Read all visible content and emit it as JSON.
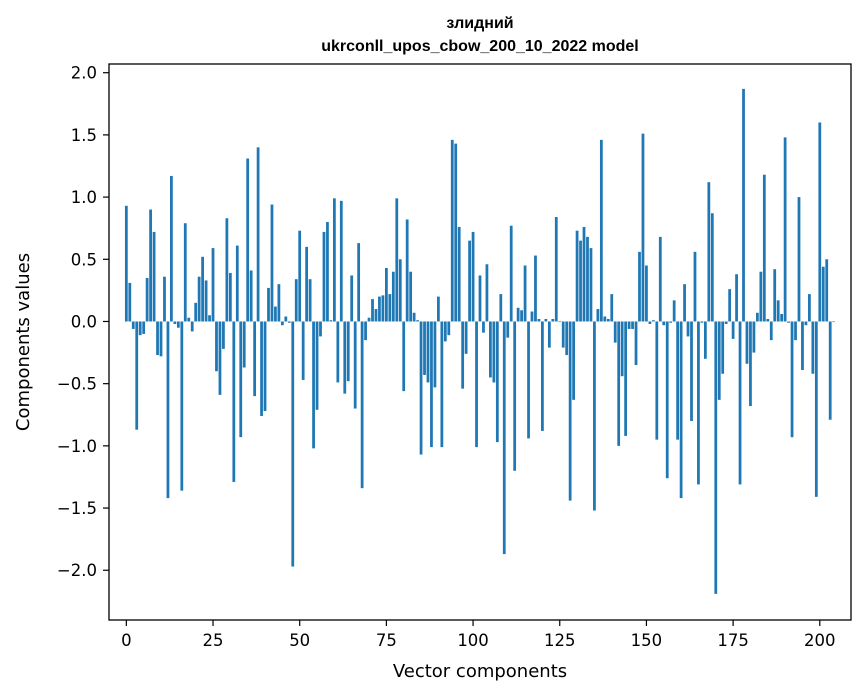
{
  "chart_data": {
    "type": "bar",
    "title_line1": "злидний",
    "title_line2": "ukrconll_upos_cbow_200_10_2022 model",
    "xlabel": "Vector components",
    "ylabel": "Components values",
    "xlim": [
      -5,
      209
    ],
    "ylim": [
      -2.4,
      2.07
    ],
    "xticks": [
      0,
      25,
      50,
      75,
      100,
      125,
      150,
      175,
      200
    ],
    "xtick_labels": [
      "0",
      "25",
      "50",
      "75",
      "100",
      "125",
      "150",
      "175",
      "200"
    ],
    "yticks": [
      2.0,
      1.5,
      1.0,
      0.5,
      0.0,
      -0.5,
      -1.0,
      -1.5,
      -2.0
    ],
    "ytick_labels": [
      "2.0",
      "1.5",
      "1.0",
      "0.5",
      "0.0",
      "−0.5",
      "−1.0",
      "−1.5",
      "−2.0"
    ],
    "bar_color": "#1f77b4",
    "values": [
      0.93,
      0.31,
      -0.06,
      -0.87,
      -0.11,
      -0.1,
      0.35,
      0.9,
      0.72,
      -0.27,
      -0.28,
      0.36,
      -1.42,
      1.17,
      -0.02,
      -0.05,
      -1.36,
      0.79,
      0.03,
      -0.08,
      0.15,
      0.36,
      0.52,
      0.33,
      0.05,
      0.59,
      -0.4,
      -0.59,
      -0.22,
      0.83,
      0.39,
      -1.29,
      0.61,
      -0.93,
      -0.37,
      1.31,
      0.41,
      -0.6,
      1.4,
      -0.76,
      -0.72,
      0.27,
      0.94,
      0.12,
      0.3,
      -0.03,
      0.04,
      -0.01,
      -1.97,
      0.34,
      0.73,
      -0.47,
      0.6,
      0.34,
      -1.02,
      -0.71,
      -0.12,
      0.72,
      0.8,
      0.01,
      0.99,
      -0.49,
      0.97,
      -0.58,
      -0.48,
      0.37,
      -0.7,
      0.63,
      -1.34,
      -0.15,
      0.03,
      0.18,
      0.1,
      0.2,
      0.21,
      0.43,
      0.22,
      0.4,
      0.99,
      0.5,
      -0.56,
      0.82,
      0.4,
      0.07,
      0.01,
      -1.07,
      -0.43,
      -0.49,
      -1.01,
      -0.53,
      0.2,
      -1.01,
      -0.16,
      -0.11,
      1.46,
      1.43,
      0.76,
      -0.54,
      -0.26,
      0.65,
      0.72,
      -1.01,
      0.37,
      -0.09,
      0.46,
      -0.45,
      -0.49,
      -0.97,
      0.22,
      -1.87,
      -0.13,
      0.77,
      -1.2,
      0.11,
      0.09,
      0.45,
      -0.94,
      0.08,
      0.53,
      0.02,
      -0.88,
      0.02,
      -0.21,
      0.02,
      0.84,
      0.0,
      -0.21,
      -0.27,
      -1.44,
      -0.63,
      0.73,
      0.65,
      0.76,
      0.68,
      0.59,
      -1.52,
      0.1,
      1.46,
      0.04,
      0.02,
      0.22,
      -0.17,
      -1.0,
      -0.44,
      -0.92,
      -0.06,
      -0.06,
      -0.35,
      0.56,
      1.51,
      0.45,
      -0.02,
      0.01,
      -0.95,
      0.68,
      -0.03,
      -1.26,
      -0.01,
      0.17,
      -0.95,
      -1.42,
      0.3,
      -0.12,
      -0.8,
      0.56,
      -1.31,
      -0.01,
      -0.3,
      1.12,
      0.87,
      -2.19,
      -0.63,
      -0.42,
      -0.02,
      0.26,
      -0.14,
      0.38,
      -1.31,
      1.87,
      -0.34,
      -0.68,
      -0.25,
      0.07,
      0.4,
      1.18,
      0.02,
      -0.15,
      0.42,
      0.17,
      0.06,
      1.48,
      -0.01,
      -0.93,
      -0.15,
      1.0,
      -0.39,
      -0.03,
      0.22,
      -0.42,
      -1.41,
      1.6,
      0.44,
      0.5,
      -0.79,
      0.0
    ]
  }
}
